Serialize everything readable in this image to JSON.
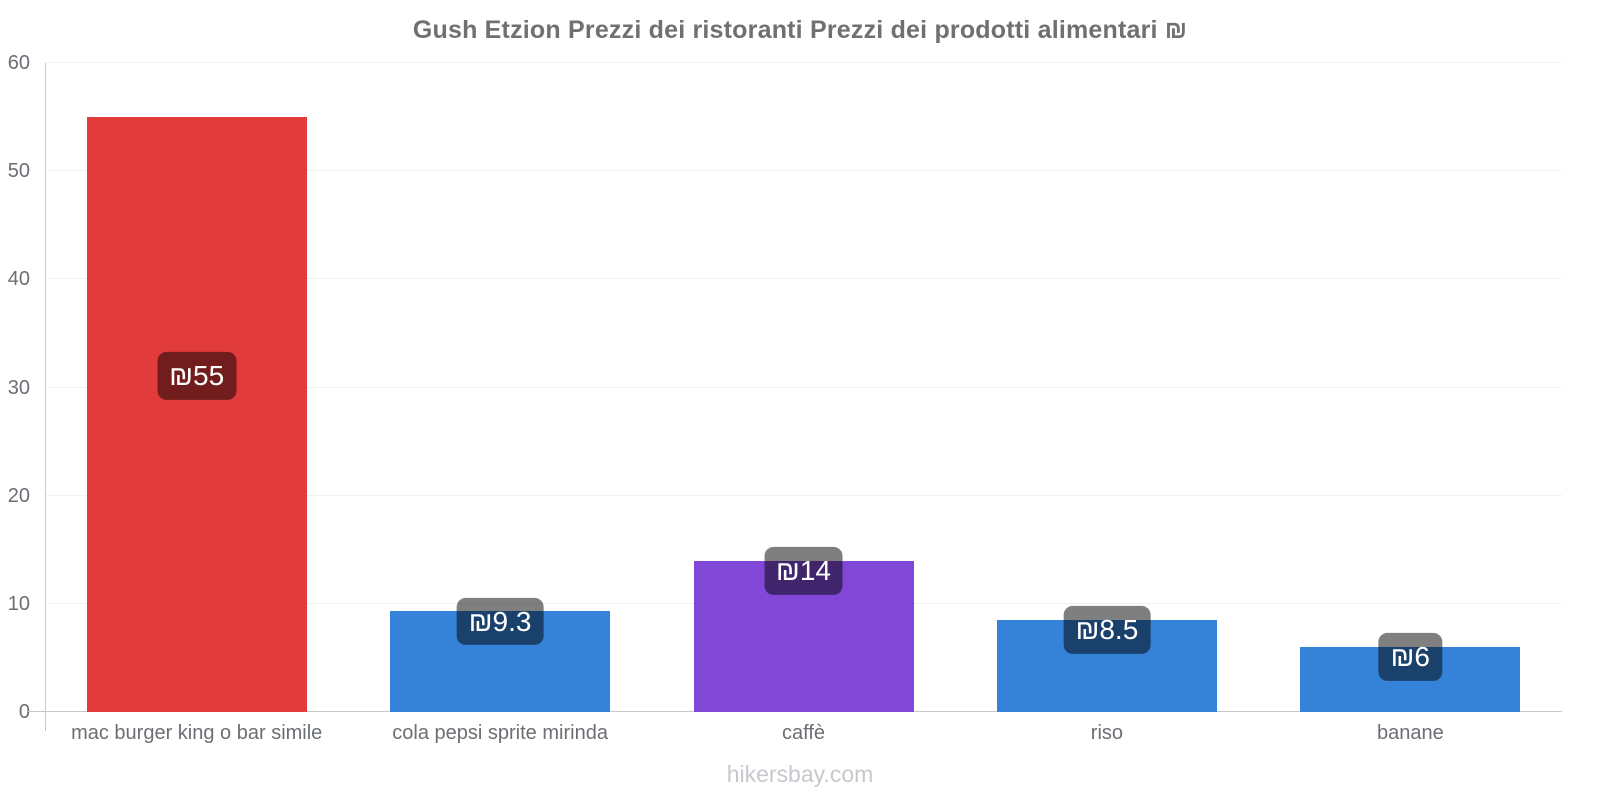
{
  "title": "Gush Etzion Prezzi dei ristoranti Prezzi dei prodotti alimentari ₪",
  "footer": "hikersbay.com",
  "chart_data": {
    "type": "bar",
    "title": "Gush Etzion Prezzi dei ristoranti Prezzi dei prodotti alimentari ₪",
    "categories": [
      "mac burger king o bar simile",
      "cola pepsi sprite mirinda",
      "caffè",
      "riso",
      "banane"
    ],
    "values": [
      55,
      9.3,
      14,
      8.5,
      6
    ],
    "value_labels": [
      "₪55",
      "₪9.3",
      "₪14",
      "₪8.5",
      "₪6"
    ],
    "bar_colors": [
      "#e23b3b",
      "#3583d8",
      "#8148d8",
      "#3583d8",
      "#3583d8"
    ],
    "currency": "₪",
    "xlabel": "",
    "ylabel": "",
    "ylim": [
      0,
      60
    ],
    "yticks": [
      0,
      10,
      20,
      30,
      40,
      50,
      60
    ],
    "grid": "horizontal-faint",
    "legend": "none"
  },
  "colors": {
    "red_bar": "#e23b3b",
    "blue_bar": "#3583d8",
    "purple_bar": "#8148d8",
    "badge_bg": "rgba(0,0,0,0.5)",
    "badge_text": "#ffffff",
    "axis": "#c8c8c8",
    "gridline": "#f1f1f2",
    "tick_text": "#6b6f73",
    "title_text": "#707070",
    "footer_text": "#c6c8cd"
  }
}
